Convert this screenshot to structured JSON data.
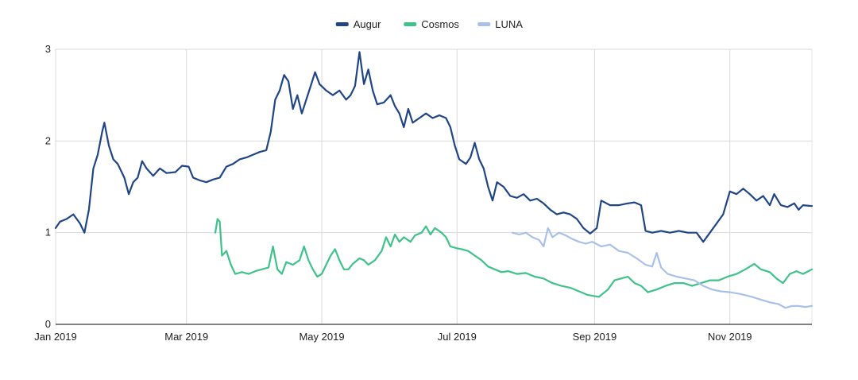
{
  "chart_data": {
    "type": "line",
    "title": "",
    "xlabel": "",
    "ylabel": "",
    "x_ticks": [
      "Jan 2019",
      "Mar 2019",
      "May 2019",
      "Jul 2019",
      "Sep 2019",
      "Nov 2019"
    ],
    "x_range": [
      "2019-01-01",
      "2019-12-08"
    ],
    "y_ticks": [
      0,
      1,
      2,
      3
    ],
    "ylim": [
      0,
      3
    ],
    "grid": true,
    "legend_position": "top",
    "series": [
      {
        "name": "Augur",
        "color": "#1f4587",
        "points": [
          [
            "2019-01-01",
            1.05
          ],
          [
            "2019-01-03",
            1.12
          ],
          [
            "2019-01-06",
            1.15
          ],
          [
            "2019-01-09",
            1.2
          ],
          [
            "2019-01-12",
            1.1
          ],
          [
            "2019-01-14",
            1.0
          ],
          [
            "2019-01-16",
            1.25
          ],
          [
            "2019-01-18",
            1.7
          ],
          [
            "2019-01-20",
            1.85
          ],
          [
            "2019-01-22",
            2.1
          ],
          [
            "2019-01-23",
            2.2
          ],
          [
            "2019-01-25",
            1.95
          ],
          [
            "2019-01-27",
            1.8
          ],
          [
            "2019-01-29",
            1.75
          ],
          [
            "2019-02-01",
            1.6
          ],
          [
            "2019-02-03",
            1.42
          ],
          [
            "2019-02-05",
            1.55
          ],
          [
            "2019-02-07",
            1.6
          ],
          [
            "2019-02-09",
            1.78
          ],
          [
            "2019-02-11",
            1.7
          ],
          [
            "2019-02-14",
            1.62
          ],
          [
            "2019-02-17",
            1.7
          ],
          [
            "2019-02-20",
            1.65
          ],
          [
            "2019-02-24",
            1.66
          ],
          [
            "2019-02-27",
            1.73
          ],
          [
            "2019-03-02",
            1.72
          ],
          [
            "2019-03-04",
            1.6
          ],
          [
            "2019-03-07",
            1.57
          ],
          [
            "2019-03-10",
            1.55
          ],
          [
            "2019-03-13",
            1.58
          ],
          [
            "2019-03-16",
            1.6
          ],
          [
            "2019-03-19",
            1.72
          ],
          [
            "2019-03-22",
            1.75
          ],
          [
            "2019-03-25",
            1.8
          ],
          [
            "2019-03-28",
            1.82
          ],
          [
            "2019-03-31",
            1.85
          ],
          [
            "2019-04-03",
            1.88
          ],
          [
            "2019-04-06",
            1.9
          ],
          [
            "2019-04-08",
            2.1
          ],
          [
            "2019-04-10",
            2.45
          ],
          [
            "2019-04-12",
            2.55
          ],
          [
            "2019-04-14",
            2.72
          ],
          [
            "2019-04-16",
            2.65
          ],
          [
            "2019-04-18",
            2.35
          ],
          [
            "2019-04-20",
            2.5
          ],
          [
            "2019-04-22",
            2.3
          ],
          [
            "2019-04-24",
            2.45
          ],
          [
            "2019-04-26",
            2.6
          ],
          [
            "2019-04-28",
            2.75
          ],
          [
            "2019-04-30",
            2.62
          ],
          [
            "2019-05-03",
            2.55
          ],
          [
            "2019-05-06",
            2.5
          ],
          [
            "2019-05-09",
            2.55
          ],
          [
            "2019-05-12",
            2.45
          ],
          [
            "2019-05-14",
            2.5
          ],
          [
            "2019-05-16",
            2.6
          ],
          [
            "2019-05-18",
            2.97
          ],
          [
            "2019-05-20",
            2.62
          ],
          [
            "2019-05-22",
            2.78
          ],
          [
            "2019-05-24",
            2.55
          ],
          [
            "2019-05-26",
            2.4
          ],
          [
            "2019-05-29",
            2.42
          ],
          [
            "2019-06-01",
            2.5
          ],
          [
            "2019-06-03",
            2.38
          ],
          [
            "2019-06-05",
            2.3
          ],
          [
            "2019-06-07",
            2.15
          ],
          [
            "2019-06-09",
            2.35
          ],
          [
            "2019-06-11",
            2.2
          ],
          [
            "2019-06-14",
            2.25
          ],
          [
            "2019-06-17",
            2.3
          ],
          [
            "2019-06-20",
            2.25
          ],
          [
            "2019-06-23",
            2.28
          ],
          [
            "2019-06-26",
            2.25
          ],
          [
            "2019-06-28",
            2.15
          ],
          [
            "2019-06-30",
            1.95
          ],
          [
            "2019-07-02",
            1.8
          ],
          [
            "2019-07-05",
            1.75
          ],
          [
            "2019-07-07",
            1.82
          ],
          [
            "2019-07-09",
            1.98
          ],
          [
            "2019-07-11",
            1.8
          ],
          [
            "2019-07-13",
            1.7
          ],
          [
            "2019-07-15",
            1.5
          ],
          [
            "2019-07-17",
            1.35
          ],
          [
            "2019-07-19",
            1.55
          ],
          [
            "2019-07-22",
            1.5
          ],
          [
            "2019-07-25",
            1.4
          ],
          [
            "2019-07-28",
            1.38
          ],
          [
            "2019-07-31",
            1.42
          ],
          [
            "2019-08-03",
            1.35
          ],
          [
            "2019-08-06",
            1.37
          ],
          [
            "2019-08-09",
            1.32
          ],
          [
            "2019-08-12",
            1.25
          ],
          [
            "2019-08-15",
            1.2
          ],
          [
            "2019-08-18",
            1.22
          ],
          [
            "2019-08-21",
            1.2
          ],
          [
            "2019-08-24",
            1.15
          ],
          [
            "2019-08-27",
            1.05
          ],
          [
            "2019-08-30",
            0.99
          ],
          [
            "2019-09-02",
            1.05
          ],
          [
            "2019-09-04",
            1.35
          ],
          [
            "2019-09-08",
            1.3
          ],
          [
            "2019-09-12",
            1.3
          ],
          [
            "2019-09-16",
            1.32
          ],
          [
            "2019-09-19",
            1.33
          ],
          [
            "2019-09-22",
            1.3
          ],
          [
            "2019-09-24",
            1.02
          ],
          [
            "2019-09-27",
            1.0
          ],
          [
            "2019-10-01",
            1.02
          ],
          [
            "2019-10-05",
            1.0
          ],
          [
            "2019-10-09",
            1.02
          ],
          [
            "2019-10-13",
            1.0
          ],
          [
            "2019-10-17",
            1.0
          ],
          [
            "2019-10-20",
            0.9
          ],
          [
            "2019-10-23",
            1.0
          ],
          [
            "2019-10-26",
            1.1
          ],
          [
            "2019-10-29",
            1.2
          ],
          [
            "2019-11-01",
            1.45
          ],
          [
            "2019-11-04",
            1.42
          ],
          [
            "2019-11-07",
            1.48
          ],
          [
            "2019-11-10",
            1.42
          ],
          [
            "2019-11-13",
            1.35
          ],
          [
            "2019-11-16",
            1.4
          ],
          [
            "2019-11-19",
            1.3
          ],
          [
            "2019-11-21",
            1.42
          ],
          [
            "2019-11-24",
            1.3
          ],
          [
            "2019-11-27",
            1.28
          ],
          [
            "2019-11-30",
            1.32
          ],
          [
            "2019-12-02",
            1.25
          ],
          [
            "2019-12-04",
            1.3
          ],
          [
            "2019-12-08",
            1.29
          ]
        ]
      },
      {
        "name": "Cosmos",
        "color": "#3fc28a",
        "points": [
          [
            "2019-03-14",
            1.0
          ],
          [
            "2019-03-15",
            1.15
          ],
          [
            "2019-03-16",
            1.12
          ],
          [
            "2019-03-17",
            0.75
          ],
          [
            "2019-03-19",
            0.8
          ],
          [
            "2019-03-21",
            0.65
          ],
          [
            "2019-03-23",
            0.55
          ],
          [
            "2019-03-26",
            0.57
          ],
          [
            "2019-03-29",
            0.55
          ],
          [
            "2019-04-01",
            0.58
          ],
          [
            "2019-04-04",
            0.6
          ],
          [
            "2019-04-07",
            0.62
          ],
          [
            "2019-04-09",
            0.85
          ],
          [
            "2019-04-11",
            0.6
          ],
          [
            "2019-04-13",
            0.55
          ],
          [
            "2019-04-15",
            0.68
          ],
          [
            "2019-04-18",
            0.65
          ],
          [
            "2019-04-21",
            0.7
          ],
          [
            "2019-04-23",
            0.85
          ],
          [
            "2019-04-25",
            0.7
          ],
          [
            "2019-04-27",
            0.6
          ],
          [
            "2019-04-29",
            0.52
          ],
          [
            "2019-05-01",
            0.55
          ],
          [
            "2019-05-03",
            0.65
          ],
          [
            "2019-05-05",
            0.75
          ],
          [
            "2019-05-07",
            0.82
          ],
          [
            "2019-05-09",
            0.7
          ],
          [
            "2019-05-11",
            0.6
          ],
          [
            "2019-05-13",
            0.6
          ],
          [
            "2019-05-15",
            0.66
          ],
          [
            "2019-05-18",
            0.72
          ],
          [
            "2019-05-20",
            0.7
          ],
          [
            "2019-05-22",
            0.65
          ],
          [
            "2019-05-25",
            0.7
          ],
          [
            "2019-05-28",
            0.8
          ],
          [
            "2019-05-30",
            0.95
          ],
          [
            "2019-06-01",
            0.85
          ],
          [
            "2019-06-03",
            0.98
          ],
          [
            "2019-06-05",
            0.9
          ],
          [
            "2019-06-07",
            0.95
          ],
          [
            "2019-06-10",
            0.9
          ],
          [
            "2019-06-12",
            0.97
          ],
          [
            "2019-06-15",
            1.0
          ],
          [
            "2019-06-17",
            1.07
          ],
          [
            "2019-06-19",
            0.98
          ],
          [
            "2019-06-21",
            1.05
          ],
          [
            "2019-06-24",
            1.0
          ],
          [
            "2019-06-26",
            0.95
          ],
          [
            "2019-06-28",
            0.85
          ],
          [
            "2019-07-01",
            0.83
          ],
          [
            "2019-07-03",
            0.82
          ],
          [
            "2019-07-06",
            0.8
          ],
          [
            "2019-07-09",
            0.75
          ],
          [
            "2019-07-12",
            0.7
          ],
          [
            "2019-07-15",
            0.63
          ],
          [
            "2019-07-18",
            0.6
          ],
          [
            "2019-07-21",
            0.57
          ],
          [
            "2019-07-24",
            0.58
          ],
          [
            "2019-07-28",
            0.55
          ],
          [
            "2019-08-01",
            0.56
          ],
          [
            "2019-08-05",
            0.52
          ],
          [
            "2019-08-09",
            0.5
          ],
          [
            "2019-08-13",
            0.45
          ],
          [
            "2019-08-17",
            0.42
          ],
          [
            "2019-08-21",
            0.4
          ],
          [
            "2019-08-25",
            0.36
          ],
          [
            "2019-08-29",
            0.32
          ],
          [
            "2019-09-03",
            0.3
          ],
          [
            "2019-09-07",
            0.38
          ],
          [
            "2019-09-10",
            0.48
          ],
          [
            "2019-09-13",
            0.5
          ],
          [
            "2019-09-16",
            0.52
          ],
          [
            "2019-09-19",
            0.45
          ],
          [
            "2019-09-22",
            0.42
          ],
          [
            "2019-09-25",
            0.35
          ],
          [
            "2019-09-29",
            0.38
          ],
          [
            "2019-10-03",
            0.42
          ],
          [
            "2019-10-07",
            0.45
          ],
          [
            "2019-10-11",
            0.45
          ],
          [
            "2019-10-15",
            0.42
          ],
          [
            "2019-10-19",
            0.45
          ],
          [
            "2019-10-23",
            0.48
          ],
          [
            "2019-10-27",
            0.48
          ],
          [
            "2019-10-31",
            0.52
          ],
          [
            "2019-11-04",
            0.55
          ],
          [
            "2019-11-08",
            0.6
          ],
          [
            "2019-11-12",
            0.66
          ],
          [
            "2019-11-15",
            0.6
          ],
          [
            "2019-11-19",
            0.57
          ],
          [
            "2019-11-22",
            0.5
          ],
          [
            "2019-11-25",
            0.45
          ],
          [
            "2019-11-28",
            0.55
          ],
          [
            "2019-12-01",
            0.58
          ],
          [
            "2019-12-04",
            0.55
          ],
          [
            "2019-12-08",
            0.6
          ]
        ]
      },
      {
        "name": "LUNA",
        "color": "#a9c1ea",
        "points": [
          [
            "2019-07-26",
            1.0
          ],
          [
            "2019-07-29",
            0.98
          ],
          [
            "2019-08-01",
            1.0
          ],
          [
            "2019-08-04",
            0.95
          ],
          [
            "2019-08-07",
            0.92
          ],
          [
            "2019-08-09",
            0.85
          ],
          [
            "2019-08-11",
            1.05
          ],
          [
            "2019-08-13",
            0.95
          ],
          [
            "2019-08-16",
            1.0
          ],
          [
            "2019-08-19",
            0.97
          ],
          [
            "2019-08-22",
            0.93
          ],
          [
            "2019-08-25",
            0.9
          ],
          [
            "2019-08-28",
            0.88
          ],
          [
            "2019-08-31",
            0.9
          ],
          [
            "2019-09-04",
            0.85
          ],
          [
            "2019-09-08",
            0.87
          ],
          [
            "2019-09-12",
            0.8
          ],
          [
            "2019-09-16",
            0.78
          ],
          [
            "2019-09-20",
            0.72
          ],
          [
            "2019-09-24",
            0.65
          ],
          [
            "2019-09-27",
            0.63
          ],
          [
            "2019-09-29",
            0.78
          ],
          [
            "2019-10-01",
            0.62
          ],
          [
            "2019-10-04",
            0.55
          ],
          [
            "2019-10-08",
            0.52
          ],
          [
            "2019-10-12",
            0.5
          ],
          [
            "2019-10-16",
            0.48
          ],
          [
            "2019-10-20",
            0.42
          ],
          [
            "2019-10-24",
            0.38
          ],
          [
            "2019-10-28",
            0.36
          ],
          [
            "2019-11-01",
            0.35
          ],
          [
            "2019-11-06",
            0.33
          ],
          [
            "2019-11-11",
            0.3
          ],
          [
            "2019-11-15",
            0.27
          ],
          [
            "2019-11-19",
            0.24
          ],
          [
            "2019-11-23",
            0.22
          ],
          [
            "2019-11-26",
            0.18
          ],
          [
            "2019-11-29",
            0.2
          ],
          [
            "2019-12-02",
            0.2
          ],
          [
            "2019-12-05",
            0.19
          ],
          [
            "2019-12-08",
            0.2
          ]
        ]
      }
    ]
  }
}
